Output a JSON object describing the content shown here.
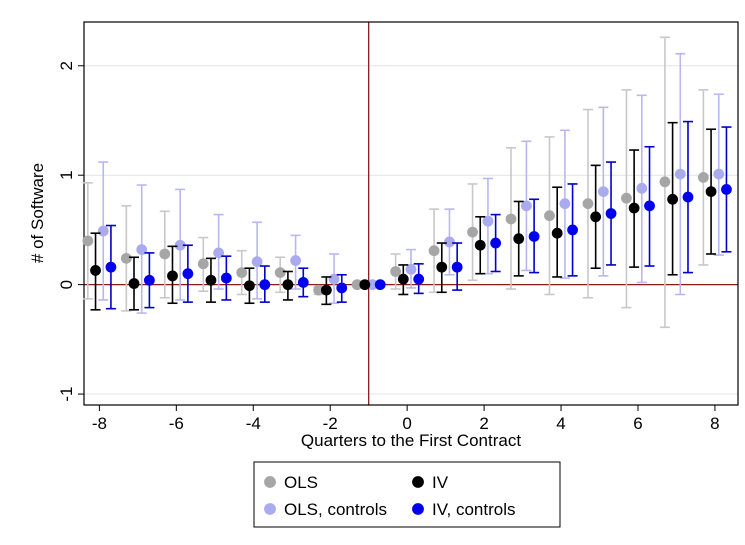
{
  "chart_data": {
    "type": "scatter",
    "title": "",
    "xlabel": "Quarters to the First Contract",
    "ylabel": "# of Software",
    "xlim": [
      -8.4,
      8.6
    ],
    "ylim": [
      -1.1,
      2.4
    ],
    "x_ticks": [
      -8,
      -6,
      -4,
      -2,
      0,
      2,
      4,
      6,
      8
    ],
    "x_tick_labels": [
      "-8",
      "-6",
      "-4",
      "-2",
      "0",
      "2",
      "4",
      "6",
      "8"
    ],
    "y_ticks": [
      -1,
      0,
      1,
      2
    ],
    "y_tick_labels": [
      "-1",
      "0",
      "1",
      "2"
    ],
    "grid": "horizontal",
    "reference_lines": {
      "x": -1,
      "y": 0,
      "color": "#8b1a1a"
    },
    "x": [
      -8,
      -7,
      -6,
      -5,
      -4,
      -3,
      -2,
      -1,
      0,
      1,
      2,
      3,
      4,
      5,
      6,
      7,
      8
    ],
    "legend": {
      "placement": "bottom",
      "columns": 2
    },
    "series": [
      {
        "name": "OLS",
        "color": "#a6a6a6",
        "bar_color": "#c8c8c8",
        "offset": -0.3,
        "values": [
          0.4,
          0.24,
          0.28,
          0.19,
          0.11,
          0.11,
          -0.05,
          0.0,
          0.12,
          0.31,
          0.48,
          0.6,
          0.63,
          0.74,
          0.79,
          0.94,
          0.98
        ],
        "lower": [
          -0.13,
          -0.24,
          -0.12,
          -0.06,
          -0.09,
          -0.07,
          -0.09,
          0.0,
          -0.04,
          -0.07,
          0.04,
          -0.04,
          -0.09,
          -0.12,
          -0.21,
          -0.39,
          0.18
        ],
        "upper": [
          0.93,
          0.72,
          0.67,
          0.43,
          0.31,
          0.25,
          -0.02,
          0.0,
          0.28,
          0.69,
          0.92,
          1.25,
          1.35,
          1.6,
          1.78,
          2.26,
          1.78
        ]
      },
      {
        "name": "OLS, controls",
        "color": "#aaaaee",
        "bar_color": "#b8b8f0",
        "offset": 0.1,
        "values": [
          0.49,
          0.32,
          0.36,
          0.29,
          0.21,
          0.22,
          0.05,
          0.0,
          0.14,
          0.39,
          0.58,
          0.72,
          0.74,
          0.85,
          0.88,
          1.01,
          1.01
        ],
        "lower": [
          -0.14,
          -0.26,
          -0.14,
          -0.04,
          -0.13,
          -0.04,
          -0.17,
          0.0,
          -0.03,
          0.09,
          0.1,
          0.13,
          0.06,
          0.08,
          0.02,
          -0.09,
          0.27
        ],
        "upper": [
          1.12,
          0.91,
          0.87,
          0.64,
          0.57,
          0.45,
          0.28,
          0.0,
          0.32,
          0.69,
          0.97,
          1.31,
          1.41,
          1.62,
          1.73,
          2.11,
          1.74
        ]
      },
      {
        "name": "IV",
        "color": "#000000",
        "bar_color": "#000000",
        "offset": -0.1,
        "values": [
          0.13,
          0.01,
          0.08,
          0.04,
          -0.01,
          0.0,
          -0.05,
          0.0,
          0.05,
          0.16,
          0.36,
          0.42,
          0.47,
          0.62,
          0.7,
          0.78,
          0.85
        ],
        "lower": [
          -0.23,
          -0.23,
          -0.17,
          -0.16,
          -0.17,
          -0.14,
          -0.18,
          0.0,
          -0.09,
          -0.07,
          0.1,
          0.08,
          0.07,
          0.15,
          0.16,
          0.09,
          0.28
        ],
        "upper": [
          0.47,
          0.25,
          0.35,
          0.24,
          0.15,
          0.12,
          0.07,
          0.0,
          0.18,
          0.38,
          0.62,
          0.76,
          0.89,
          1.09,
          1.23,
          1.48,
          1.42
        ]
      },
      {
        "name": "IV, controls",
        "color": "#0000ee",
        "bar_color": "#0000cc",
        "offset": 0.3,
        "values": [
          0.16,
          0.04,
          0.1,
          0.06,
          0.0,
          0.02,
          -0.03,
          0.0,
          0.05,
          0.16,
          0.38,
          0.44,
          0.5,
          0.65,
          0.72,
          0.8,
          0.87
        ],
        "lower": [
          -0.22,
          -0.21,
          -0.16,
          -0.14,
          -0.16,
          -0.11,
          -0.16,
          0.0,
          -0.08,
          -0.05,
          0.12,
          0.11,
          0.08,
          0.18,
          0.17,
          0.11,
          0.3
        ],
        "upper": [
          0.54,
          0.29,
          0.36,
          0.26,
          0.17,
          0.15,
          0.09,
          0.0,
          0.19,
          0.38,
          0.64,
          0.78,
          0.92,
          1.12,
          1.26,
          1.49,
          1.44
        ]
      }
    ]
  }
}
